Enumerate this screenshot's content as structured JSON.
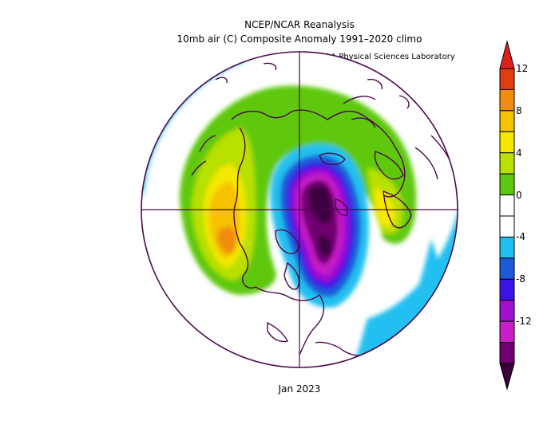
{
  "titles": {
    "line1": "NCEP/NCAR Reanalysis",
    "line2": "10mb air (C) Composite Anomaly 1991–2020 climo",
    "lab": "NOAA Physical Sciences Laboratory",
    "period": "Jan 2023"
  },
  "colorbar": {
    "ticks": [
      "12",
      "8",
      "4",
      "0",
      "-4",
      "-8",
      "-12"
    ],
    "colors": [
      "#e03c10",
      "#f08c10",
      "#f5c100",
      "#f5e800",
      "#b8e000",
      "#5ec810",
      "#ffffff",
      "#ffffff",
      "#20c0f0",
      "#1e5ad8",
      "#3a14e6",
      "#a010d0",
      "#c81ec8",
      "#700070"
    ],
    "top_arrow": "#e02020",
    "bottom_arrow": "#3a003a"
  },
  "map": {
    "projection": "polar stereographic, North Pole",
    "line_color": "#4b0a4b"
  }
}
